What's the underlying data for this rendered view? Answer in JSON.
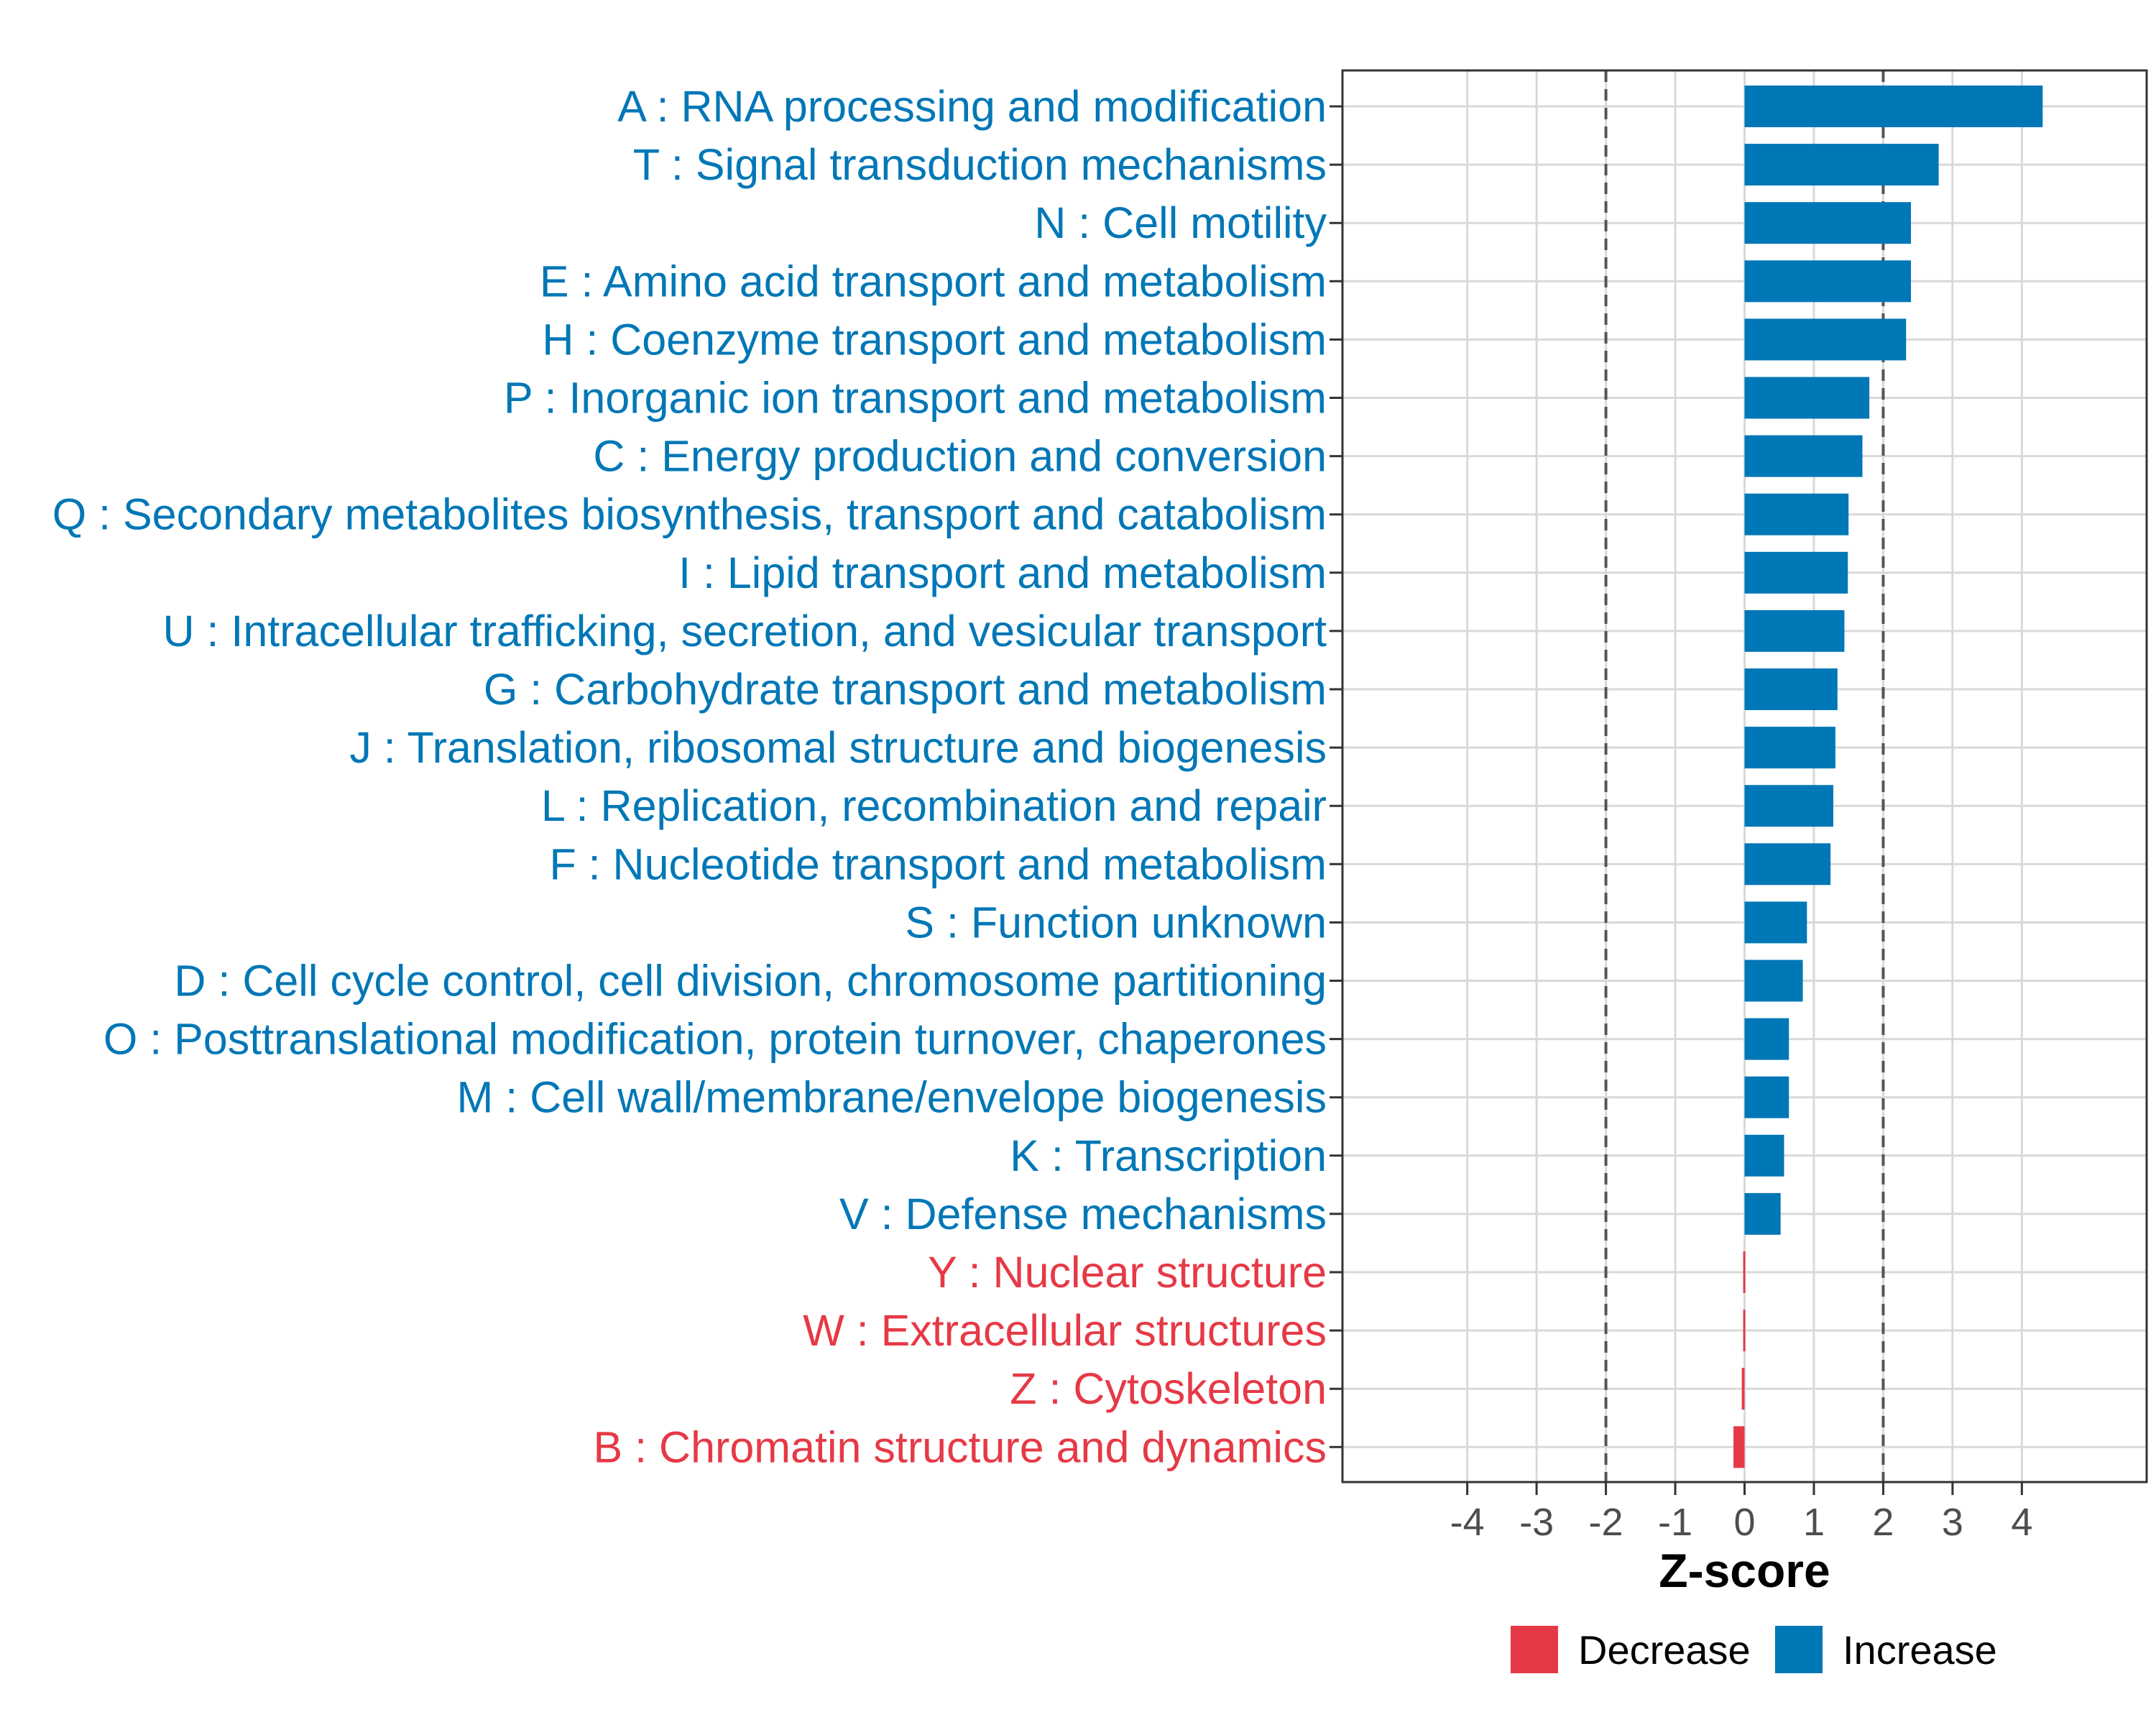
{
  "chart_data": {
    "type": "bar",
    "orientation": "horizontal",
    "title": "",
    "xlabel": "Z-score",
    "ylabel": "",
    "xlim": [
      -5.8,
      5.8
    ],
    "xticks": [
      -4,
      -3,
      -2,
      -1,
      0,
      1,
      2,
      3,
      4
    ],
    "xtick_labels": [
      "-4",
      "-3",
      "-2",
      "-1",
      "0",
      "1",
      "2",
      "3",
      "4"
    ],
    "reference_lines": [
      -2,
      2
    ],
    "grid": true,
    "categories": [
      "A : RNA processing and modification",
      "T : Signal transduction mechanisms",
      "N : Cell motility",
      "E : Amino acid transport and metabolism",
      "H : Coenzyme transport and metabolism",
      "P : Inorganic ion transport and metabolism",
      "C : Energy production and conversion",
      "Q : Secondary metabolites biosynthesis, transport and catabolism",
      "I : Lipid transport and metabolism",
      "U : Intracellular trafficking, secretion, and vesicular transport",
      "G : Carbohydrate transport and metabolism",
      "J : Translation, ribosomal structure and biogenesis",
      "L : Replication, recombination and repair",
      "F : Nucleotide transport and metabolism",
      "S : Function unknown",
      "D : Cell cycle control, cell division, chromosome partitioning",
      "O : Posttranslational modification, protein turnover, chaperones",
      "M : Cell wall/membrane/envelope biogenesis",
      "K : Transcription",
      "V : Defense mechanisms",
      "Y : Nuclear structure",
      "W : Extracellular structures",
      "Z : Cytoskeleton",
      "B : Chromatin structure and dynamics"
    ],
    "values": [
      4.3,
      2.8,
      2.4,
      2.4,
      2.33,
      1.8,
      1.7,
      1.5,
      1.49,
      1.44,
      1.34,
      1.31,
      1.28,
      1.24,
      0.9,
      0.84,
      0.64,
      0.64,
      0.57,
      0.52,
      -0.02,
      -0.02,
      -0.04,
      -0.16
    ],
    "direction": [
      "Increase",
      "Increase",
      "Increase",
      "Increase",
      "Increase",
      "Increase",
      "Increase",
      "Increase",
      "Increase",
      "Increase",
      "Increase",
      "Increase",
      "Increase",
      "Increase",
      "Increase",
      "Increase",
      "Increase",
      "Increase",
      "Increase",
      "Increase",
      "Decrease",
      "Decrease",
      "Decrease",
      "Decrease"
    ],
    "legend": {
      "position": "bottom",
      "entries": [
        {
          "name": "Decrease",
          "color": "#e63946"
        },
        {
          "name": "Increase",
          "color": "#0077b6"
        }
      ]
    },
    "colors": {
      "increase": "#0077b6",
      "decrease": "#e63946",
      "grid": "#d9d9d9",
      "panel_border": "#333333",
      "reference_line": "#555555"
    }
  }
}
